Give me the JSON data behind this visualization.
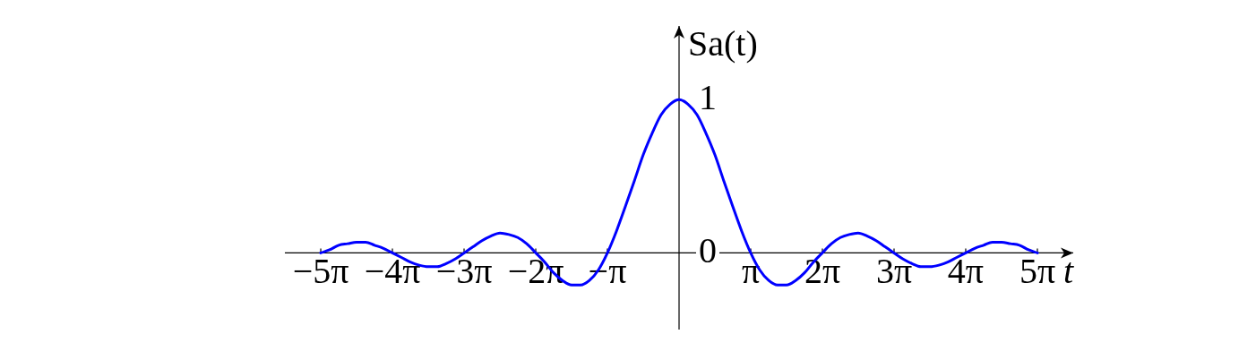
{
  "chart_data": {
    "type": "line",
    "xlabel": "t",
    "ylabel": "Sa(t)",
    "x": [
      -15.71,
      -15.32,
      -14.92,
      -14.53,
      -14.14,
      -13.74,
      -13.35,
      -12.96,
      -12.57,
      -12.17,
      -11.78,
      -11.39,
      -11,
      -10.6,
      -10.21,
      -9.82,
      -9.42,
      -9.03,
      -8.64,
      -8.25,
      -7.85,
      -7.46,
      -7.07,
      -6.68,
      -6.28,
      -5.89,
      -5.5,
      -5.11,
      -4.71,
      -4.32,
      -3.93,
      -3.53,
      -3.14,
      -2.75,
      -2.36,
      -1.96,
      -1.57,
      -1.18,
      -0.79,
      -0.39,
      0,
      0.39,
      0.79,
      1.18,
      1.57,
      1.96,
      2.36,
      2.75,
      3.14,
      3.53,
      3.93,
      4.32,
      4.71,
      5.11,
      5.5,
      5.89,
      6.28,
      6.68,
      7.07,
      7.46,
      7.85,
      8.25,
      8.64,
      9.03,
      9.42,
      9.82,
      10.21,
      10.6,
      11,
      11.39,
      11.78,
      12.17,
      12.57,
      12.96,
      13.35,
      13.74,
      14.14,
      14.53,
      14.92,
      15.32,
      15.71
    ],
    "series": [
      {
        "color": "#0000ff",
        "values": [
          0,
          0.02,
          0.05,
          0.06,
          0.07,
          0.07,
          0.05,
          0.03,
          0,
          -0.03,
          -0.06,
          -0.08,
          -0.09,
          -0.09,
          -0.07,
          -0.04,
          0,
          0.04,
          0.08,
          0.11,
          0.13,
          0.12,
          0.1,
          0.06,
          0,
          -0.06,
          -0.13,
          -0.18,
          -0.21,
          -0.21,
          -0.18,
          -0.11,
          0,
          0.14,
          0.3,
          0.47,
          0.64,
          0.78,
          0.9,
          0.97,
          1,
          0.97,
          0.9,
          0.78,
          0.64,
          0.47,
          0.3,
          0.14,
          0,
          -0.11,
          -0.18,
          -0.21,
          -0.21,
          -0.18,
          -0.13,
          -0.06,
          0,
          0.06,
          0.1,
          0.12,
          0.13,
          0.11,
          0.08,
          0.04,
          0,
          -0.04,
          -0.07,
          -0.09,
          -0.09,
          -0.08,
          -0.06,
          -0.03,
          0,
          0.03,
          0.05,
          0.07,
          0.07,
          0.06,
          0.05,
          0.02,
          0
        ]
      }
    ],
    "xlim": [
      -17.28,
      17.28
    ],
    "ylim": [
      -0.5,
      1.48
    ],
    "xticks": [
      {
        "value": -15.708,
        "label": "−5π"
      },
      {
        "value": -12.566,
        "label": "−4π"
      },
      {
        "value": -9.425,
        "label": "−3π"
      },
      {
        "value": -6.283,
        "label": "−2π"
      },
      {
        "value": -3.142,
        "label": "−π"
      },
      {
        "value": 3.142,
        "label": "π"
      },
      {
        "value": 6.283,
        "label": "2π"
      },
      {
        "value": 9.425,
        "label": "3π"
      },
      {
        "value": 12.566,
        "label": "4π"
      },
      {
        "value": 15.708,
        "label": "5π"
      }
    ],
    "yticks": [
      0,
      1
    ],
    "grid": false,
    "legend": false,
    "marker": "none",
    "line_style": "solid"
  }
}
